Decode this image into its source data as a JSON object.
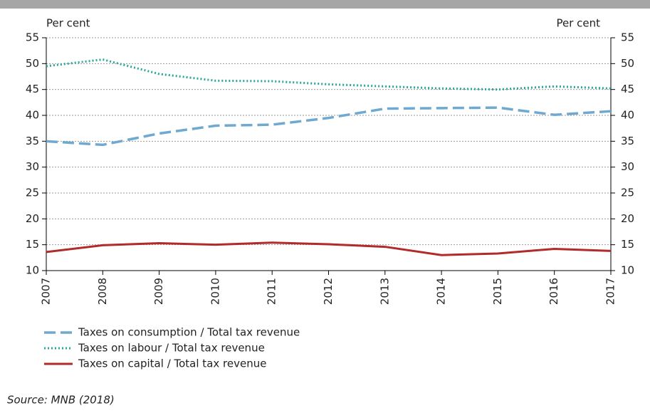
{
  "chart_data": {
    "type": "line",
    "y_label": "Per cent",
    "y2_label": "Per cent",
    "x": [
      2007,
      2008,
      2009,
      2010,
      2011,
      2012,
      2013,
      2014,
      2015,
      2016,
      2017
    ],
    "xlim": [
      2007,
      2017
    ],
    "xticks": [
      2007,
      2008,
      2009,
      2010,
      2011,
      2012,
      2013,
      2014,
      2015,
      2016,
      2017
    ],
    "ylim": [
      10,
      55
    ],
    "yticks": [
      10,
      15,
      20,
      25,
      30,
      35,
      40,
      45,
      50,
      55
    ],
    "y2lim": [
      10,
      55
    ],
    "y2ticks": [
      10,
      15,
      20,
      25,
      30,
      35,
      40,
      45,
      50,
      55
    ],
    "grid": true,
    "series": [
      {
        "name": "Taxes on consumption / Total tax revenue",
        "color": "#6fa8d0",
        "style": "dashed",
        "values": [
          35,
          34.3,
          36.5,
          38,
          38.2,
          39.5,
          41.3,
          41.4,
          41.5,
          40.1,
          40.8
        ]
      },
      {
        "name": "Taxes on labour / Total tax revenue",
        "color": "#2aa59a",
        "style": "dotted",
        "values": [
          49.5,
          50.8,
          48,
          46.7,
          46.6,
          46,
          45.6,
          45.2,
          45,
          45.6,
          45.2
        ]
      },
      {
        "name": "Taxes on capital / Total tax revenue",
        "color": "#b22a2a",
        "style": "solid",
        "values": [
          13.6,
          14.9,
          15.3,
          15,
          15.4,
          15.1,
          14.6,
          13,
          13.3,
          14.2,
          13.8
        ]
      }
    ]
  },
  "source": "Source: MNB (2018)"
}
